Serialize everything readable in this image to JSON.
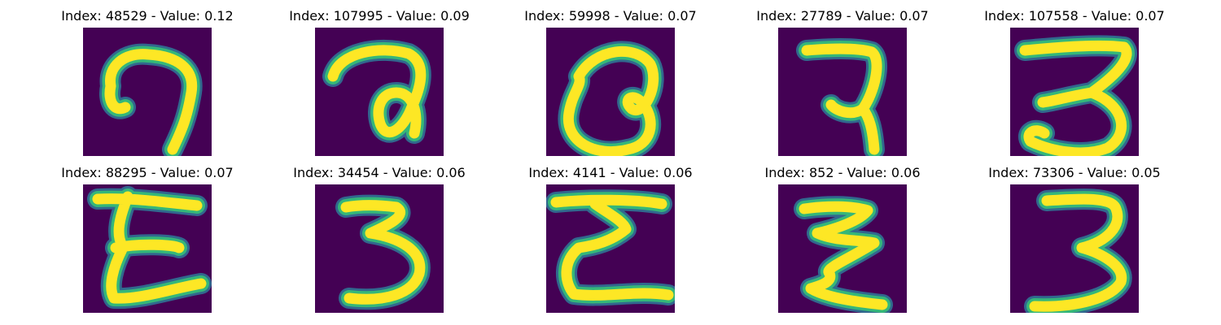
{
  "background_color": "#440154",
  "stroke_colors": {
    "core": "#fde725",
    "edge": "#35b779",
    "fringe": "#31688e"
  },
  "panels": [
    {
      "title": "Index: 48529 - Value: 0.12",
      "glyph": "g0"
    },
    {
      "title": "Index: 107995 - Value: 0.09",
      "glyph": "g1"
    },
    {
      "title": "Index: 59998 - Value: 0.07",
      "glyph": "g2"
    },
    {
      "title": "Index: 27789 - Value: 0.07",
      "glyph": "g3"
    },
    {
      "title": "Index: 107558 - Value: 0.07",
      "glyph": "g4"
    },
    {
      "title": "Index: 88295 - Value: 0.07",
      "glyph": "g5"
    },
    {
      "title": "Index: 34454 - Value: 0.06",
      "glyph": "g6"
    },
    {
      "title": "Index: 4141 - Value: 0.06",
      "glyph": "g7"
    },
    {
      "title": "Index: 852 - Value: 0.06",
      "glyph": "g8"
    },
    {
      "title": "Index: 73306 - Value: 0.05",
      "glyph": "g9"
    }
  ]
}
